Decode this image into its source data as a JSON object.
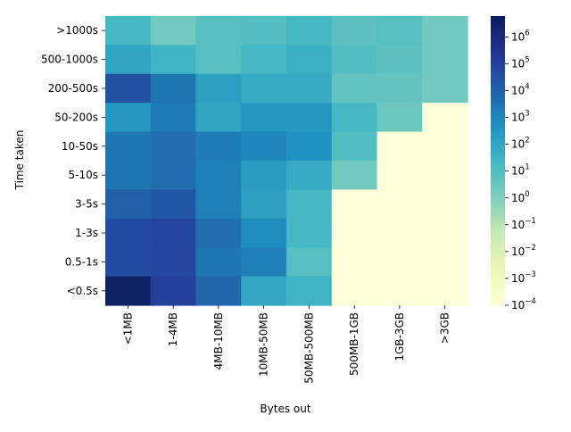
{
  "chart_data": {
    "type": "heatmap",
    "xlabel": "Bytes out",
    "ylabel": "Time taken",
    "x_categories": [
      "<1MB",
      "1-4MB",
      "4MB-10MB",
      "10MB-50MB",
      "50MB-500MB",
      "500MB-1GB",
      "1GB-3GB",
      ">3GB"
    ],
    "y_categories": [
      ">1000s",
      "500-1000s",
      "200-500s",
      "50-200s",
      "10-50s",
      "5-10s",
      "3-5s",
      "1-3s",
      "0.5-1s",
      "<0.5s"
    ],
    "color_scale": "log",
    "colormap": "YlGnBu",
    "vmin": 0.0001,
    "vmax": 6000000,
    "colorbar_ticks": [
      {
        "value": 1000000,
        "label": "10^6"
      },
      {
        "value": 100000,
        "label": "10^5"
      },
      {
        "value": 10000,
        "label": "10^4"
      },
      {
        "value": 1000,
        "label": "10^3"
      },
      {
        "value": 100,
        "label": "10^2"
      },
      {
        "value": 10,
        "label": "10^1"
      },
      {
        "value": 1,
        "label": "10^0"
      },
      {
        "value": 0.1,
        "label": "10^-1"
      },
      {
        "value": 0.01,
        "label": "10^-2"
      },
      {
        "value": 0.001,
        "label": "10^-3"
      },
      {
        "value": 0.0001,
        "label": "10^-4"
      }
    ],
    "values": [
      [
        20,
        2,
        8,
        10,
        20,
        6,
        8,
        2
      ],
      [
        100,
        30,
        8,
        20,
        40,
        10,
        6,
        2
      ],
      [
        30000,
        3000,
        150,
        60,
        60,
        5,
        4,
        2
      ],
      [
        300,
        2000,
        100,
        300,
        300,
        20,
        3,
        0.0001
      ],
      [
        3000,
        5000,
        2000,
        1000,
        500,
        10,
        0.0001,
        0.0001
      ],
      [
        3000,
        5000,
        1500,
        200,
        60,
        2,
        0.0001,
        0.0001
      ],
      [
        10000,
        20000,
        1500,
        150,
        20,
        0.0001,
        0.0001,
        0.0001
      ],
      [
        50000,
        70000,
        5000,
        600,
        20,
        0.0001,
        0.0001,
        0.0001
      ],
      [
        50000,
        70000,
        3000,
        1500,
        8,
        0.0001,
        0.0001,
        0.0001
      ],
      [
        3000000,
        100000,
        8000,
        80,
        30,
        0.0001,
        0.0001,
        0.0001
      ]
    ]
  }
}
